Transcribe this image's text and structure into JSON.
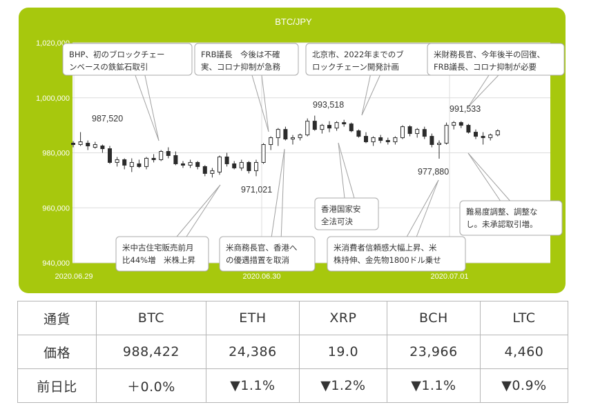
{
  "chart_data": {
    "type": "candlestick",
    "title": "BTC/JPY",
    "ylim": [
      940000,
      1020000
    ],
    "yticks": [
      940000,
      960000,
      980000,
      1000000,
      1020000
    ],
    "ytick_labels": [
      "940,000",
      "960,000",
      "980,000",
      "1,000,000",
      "1,020,000"
    ],
    "xtick_labels": [
      "2020.06.29",
      "2020.06.30",
      "2020.07.01"
    ],
    "grid": true,
    "candles": [
      [
        983500,
        984200,
        982000,
        983000
      ],
      [
        983000,
        987520,
        982500,
        984000
      ],
      [
        983500,
        984500,
        981000,
        982500
      ],
      [
        982000,
        984000,
        981500,
        983000
      ],
      [
        982500,
        983000,
        980000,
        981500
      ],
      [
        981500,
        982500,
        976000,
        976500
      ],
      [
        976500,
        978500,
        975000,
        977500
      ],
      [
        977500,
        978000,
        974000,
        975500
      ],
      [
        975000,
        978000,
        973000,
        976500
      ],
      [
        976000,
        977500,
        974500,
        975000
      ],
      [
        975000,
        978500,
        974000,
        978000
      ],
      [
        978000,
        979500,
        976500,
        977500
      ],
      [
        977500,
        981000,
        977000,
        980500
      ],
      [
        980500,
        982000,
        978000,
        979000
      ],
      [
        979000,
        980500,
        975500,
        976000
      ],
      [
        976000,
        977000,
        974500,
        975500
      ],
      [
        975500,
        977500,
        974500,
        976500
      ],
      [
        976500,
        977000,
        974000,
        975000
      ],
      [
        975000,
        975500,
        971500,
        972500
      ],
      [
        972500,
        974500,
        971021,
        973500
      ],
      [
        973000,
        979000,
        972000,
        978500
      ],
      [
        978500,
        980000,
        975000,
        976000
      ],
      [
        976000,
        977000,
        974000,
        974500
      ],
      [
        974500,
        977500,
        973500,
        976500
      ],
      [
        976500,
        977000,
        972500,
        973500
      ],
      [
        973500,
        977500,
        971500,
        976500
      ],
      [
        976500,
        983500,
        976000,
        983000
      ],
      [
        983000,
        986000,
        981000,
        985500
      ],
      [
        985500,
        989000,
        982500,
        988500
      ],
      [
        988500,
        989500,
        984500,
        985000
      ],
      [
        985000,
        986500,
        983000,
        985500
      ],
      [
        985500,
        987000,
        984500,
        986500
      ],
      [
        986500,
        992500,
        986000,
        991500
      ],
      [
        991500,
        993518,
        988000,
        988500
      ],
      [
        988500,
        990500,
        987000,
        990000
      ],
      [
        990000,
        991500,
        987500,
        989000
      ],
      [
        989000,
        991500,
        988000,
        991000
      ],
      [
        991000,
        992000,
        989500,
        990500
      ],
      [
        990500,
        991000,
        987500,
        988000
      ],
      [
        988000,
        988500,
        985500,
        986000
      ],
      [
        986000,
        987500,
        983500,
        984000
      ],
      [
        984000,
        986000,
        982500,
        985500
      ],
      [
        985500,
        986500,
        983500,
        984500
      ],
      [
        984500,
        985500,
        983000,
        984000
      ],
      [
        984000,
        986000,
        983000,
        985500
      ],
      [
        985500,
        990000,
        985000,
        989500
      ],
      [
        989500,
        990000,
        986000,
        987000
      ],
      [
        987000,
        989000,
        985500,
        988500
      ],
      [
        988500,
        989500,
        985000,
        986000
      ],
      [
        986000,
        987000,
        982000,
        983000
      ],
      [
        983000,
        984500,
        977880,
        983500
      ],
      [
        983500,
        991000,
        983000,
        990000
      ],
      [
        990000,
        991533,
        988500,
        991000
      ],
      [
        991000,
        991500,
        989000,
        990000
      ],
      [
        990000,
        990500,
        987000,
        987500
      ],
      [
        987500,
        988500,
        985000,
        986000
      ],
      [
        986000,
        987500,
        983000,
        985500
      ],
      [
        985500,
        987000,
        984500,
        986500
      ],
      [
        986500,
        988500,
        986000,
        988000
      ]
    ],
    "data_labels": [
      {
        "text": "987,520",
        "value": 987520
      },
      {
        "text": "971,021",
        "value": 971021
      },
      {
        "text": "993,518",
        "value": 993518
      },
      {
        "text": "991,533",
        "value": 991533
      },
      {
        "text": "977,880",
        "value": 977880
      }
    ],
    "annotations": [
      {
        "lines": [
          "BHP、初のブロックチェー",
          "ンベースの鉄鉱石取引"
        ]
      },
      {
        "lines": [
          "FRB議長　今後は不確",
          "実、コロナ抑制が急務"
        ]
      },
      {
        "lines": [
          "北京市、2022年までのブ",
          "ロックチェーン開発計画"
        ]
      },
      {
        "lines": [
          "米財務長官、今年後半の回復、",
          "FRB議長、コロナ抑制が必要"
        ]
      },
      {
        "lines": [
          "香港国家安",
          "全法可決"
        ]
      },
      {
        "lines": [
          "難易度調整、調整な",
          "し。未承認取引増。"
        ]
      },
      {
        "lines": [
          "米中古住宅販売前月",
          "比44%増　米株上昇"
        ]
      },
      {
        "lines": [
          "米商務長官、香港へ",
          "の優遇措置を取消"
        ]
      },
      {
        "lines": [
          "米消費者信頼感大幅上昇、米",
          "株持伸、金先物1800ドル乗せ"
        ]
      }
    ]
  },
  "table": {
    "rows": [
      [
        "通貨",
        "BTC",
        "ETH",
        "XRP",
        "BCH",
        "LTC"
      ],
      [
        "価格",
        "988,422",
        "24,386",
        "19.0",
        "23,966",
        "4,460"
      ],
      [
        "前日比",
        "＋0.0%",
        "▼1.1%",
        "▼1.2%",
        "▼1.1%",
        "▼0.9%"
      ]
    ]
  },
  "colors": {
    "panel": "#a7c80d",
    "grid": "#dcdcdc",
    "candle": "#2b2b2b",
    "label": "#333333"
  }
}
